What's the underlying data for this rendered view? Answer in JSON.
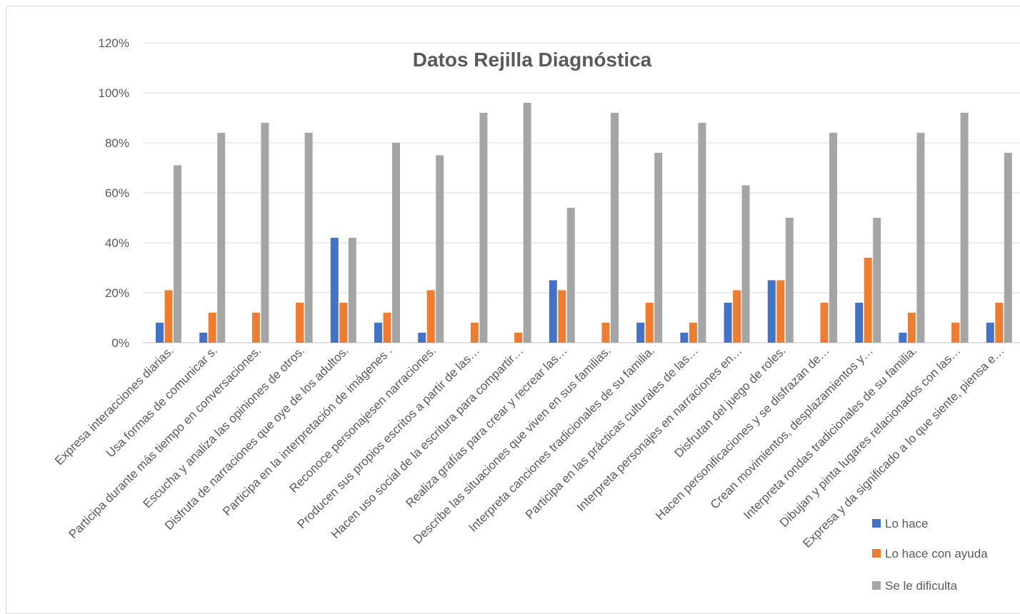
{
  "chart_data": {
    "type": "bar",
    "title": "Datos Rejilla Diagnóstica",
    "xlabel": "",
    "ylabel": "",
    "ylim": [
      0,
      1.2
    ],
    "yticks": [
      "0%",
      "20%",
      "40%",
      "60%",
      "80%",
      "100%",
      "120%"
    ],
    "grid": true,
    "legend_position": "bottom-right",
    "categories": [
      "Expresa  interacciones diarias.",
      "Usa formas de comunicar s.",
      "Participa durante más tiempo en conversaciones.",
      "Escucha y analiza las opiniones de otros.",
      "Disfruta de narraciones que oye de los adultos.",
      "Participa en la interpretación de imágenes .",
      "Reconoce personajesen narraciones.",
      "Producen sus propios escritos a partir de las…",
      "Hacen uso social de la escritura para compartir…",
      "Realiza grafías para crear y recrear las…",
      "Describe las situaciones que viven en sus familias.",
      "Interpreta canciones tradicionales de su familia.",
      "Participa en las prácticas culturales de las…",
      "Interpreta personajes en narraciones en…",
      "Disfrutan del juego de roles.",
      "Hacen personificaciones y se disfrazan de…",
      "Crean movimientos, desplazamientos y…",
      "Interpreta rondas tradicionales de su familia.",
      "Dibujan y pinta lugares relacionados con las…",
      "Expresa y da significado a lo que siente, piensa e…"
    ],
    "series": [
      {
        "name": "Lo hace",
        "color": "#4472c4",
        "values": [
          0.08,
          0.04,
          0,
          0,
          0.42,
          0.08,
          0.04,
          0,
          0,
          0.25,
          0,
          0.08,
          0.04,
          0.16,
          0.25,
          0,
          0.16,
          0.04,
          0,
          0.08
        ]
      },
      {
        "name": "Lo hace con ayuda",
        "color": "#ed7d31",
        "values": [
          0.21,
          0.12,
          0.12,
          0.16,
          0.16,
          0.12,
          0.21,
          0.08,
          0.04,
          0.21,
          0.08,
          0.16,
          0.08,
          0.21,
          0.25,
          0.16,
          0.34,
          0.12,
          0.08,
          0.16
        ]
      },
      {
        "name": "Se le dificulta",
        "color": "#a5a5a5",
        "values": [
          0.71,
          0.84,
          0.88,
          0.84,
          0.42,
          0.8,
          0.75,
          0.92,
          0.96,
          0.54,
          0.92,
          0.76,
          0.88,
          0.63,
          0.5,
          0.84,
          0.5,
          0.84,
          0.92,
          0.76
        ]
      }
    ]
  }
}
